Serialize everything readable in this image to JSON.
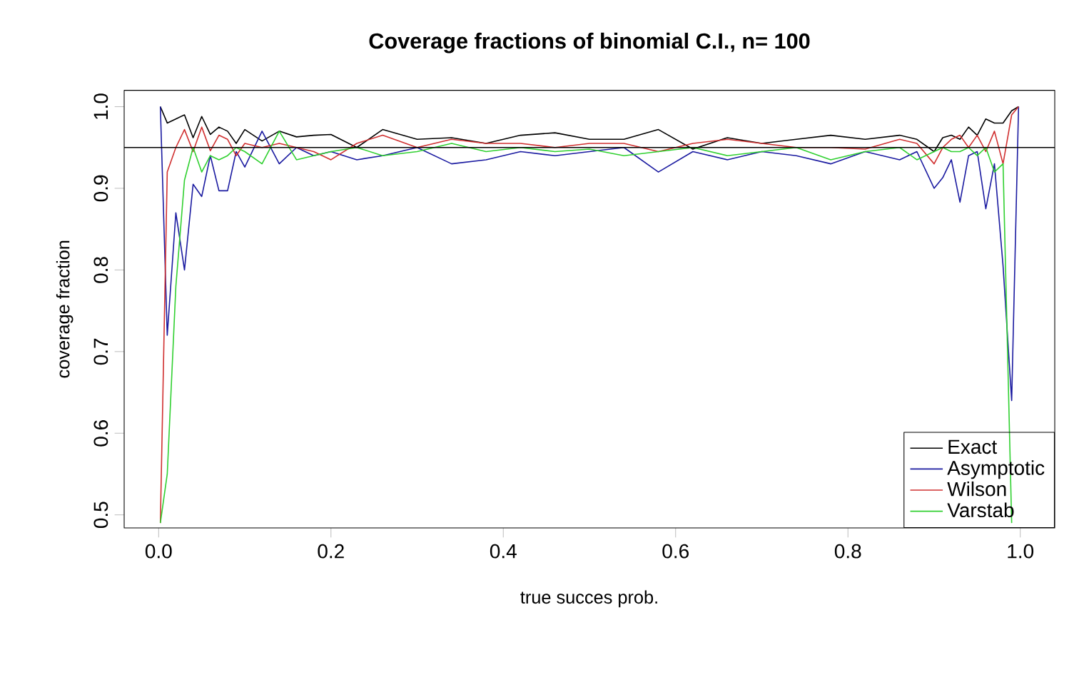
{
  "chart_data": {
    "type": "line",
    "title": "Coverage fractions of binomial C.I., n=  100",
    "xlabel": "true succes prob.",
    "ylabel": "coverage fraction",
    "x": [
      0.002,
      0.01,
      0.02,
      0.03,
      0.04,
      0.05,
      0.06,
      0.07,
      0.08,
      0.09,
      0.1,
      0.12,
      0.14,
      0.16,
      0.18,
      0.2,
      0.23,
      0.26,
      0.3,
      0.34,
      0.38,
      0.42,
      0.46,
      0.5,
      0.54,
      0.58,
      0.62,
      0.66,
      0.7,
      0.74,
      0.78,
      0.82,
      0.86,
      0.88,
      0.9,
      0.91,
      0.92,
      0.93,
      0.94,
      0.95,
      0.96,
      0.97,
      0.98,
      0.99,
      0.998
    ],
    "series": [
      {
        "name": "Exact",
        "color": "#000000",
        "values": [
          1.0,
          0.98,
          0.985,
          0.99,
          0.962,
          0.988,
          0.966,
          0.975,
          0.97,
          0.955,
          0.972,
          0.958,
          0.97,
          0.963,
          0.965,
          0.966,
          0.95,
          0.972,
          0.96,
          0.962,
          0.955,
          0.965,
          0.968,
          0.96,
          0.96,
          0.972,
          0.948,
          0.962,
          0.955,
          0.96,
          0.965,
          0.96,
          0.965,
          0.96,
          0.945,
          0.962,
          0.965,
          0.96,
          0.975,
          0.965,
          0.985,
          0.98,
          0.98,
          0.995,
          1.0
        ]
      },
      {
        "name": "Asymptotic",
        "color": "#1a1aa0",
        "values": [
          1.0,
          0.72,
          0.87,
          0.8,
          0.905,
          0.89,
          0.94,
          0.897,
          0.897,
          0.945,
          0.926,
          0.97,
          0.93,
          0.95,
          0.94,
          0.945,
          0.935,
          0.94,
          0.95,
          0.93,
          0.935,
          0.945,
          0.94,
          0.945,
          0.95,
          0.92,
          0.945,
          0.935,
          0.945,
          0.94,
          0.93,
          0.945,
          0.935,
          0.945,
          0.9,
          0.913,
          0.935,
          0.883,
          0.94,
          0.945,
          0.875,
          0.93,
          0.805,
          0.64,
          1.0
        ]
      },
      {
        "name": "Wilson",
        "color": "#d03030",
        "values": [
          0.49,
          0.92,
          0.95,
          0.972,
          0.945,
          0.975,
          0.946,
          0.965,
          0.96,
          0.94,
          0.955,
          0.95,
          0.955,
          0.95,
          0.945,
          0.935,
          0.955,
          0.965,
          0.95,
          0.96,
          0.955,
          0.955,
          0.95,
          0.955,
          0.955,
          0.945,
          0.955,
          0.96,
          0.955,
          0.95,
          0.95,
          0.948,
          0.96,
          0.955,
          0.93,
          0.95,
          0.96,
          0.965,
          0.95,
          0.965,
          0.945,
          0.97,
          0.93,
          0.99,
          1.0
        ]
      },
      {
        "name": "Varstab",
        "color": "#30d030",
        "values": [
          0.49,
          0.55,
          0.78,
          0.91,
          0.95,
          0.92,
          0.94,
          0.935,
          0.94,
          0.95,
          0.945,
          0.93,
          0.97,
          0.935,
          0.94,
          0.945,
          0.95,
          0.94,
          0.945,
          0.955,
          0.945,
          0.95,
          0.945,
          0.948,
          0.94,
          0.945,
          0.95,
          0.94,
          0.945,
          0.95,
          0.935,
          0.945,
          0.95,
          0.935,
          0.945,
          0.95,
          0.945,
          0.945,
          0.95,
          0.94,
          0.95,
          0.92,
          0.93,
          0.49,
          null
        ]
      }
    ],
    "xlim": [
      -0.04,
      1.04
    ],
    "ylim": [
      0.484,
      1.02
    ],
    "xticks": [
      {
        "value": 0.0,
        "label": "0.0"
      },
      {
        "value": 0.2,
        "label": "0.2"
      },
      {
        "value": 0.4,
        "label": "0.4"
      },
      {
        "value": 0.6,
        "label": "0.6"
      },
      {
        "value": 0.8,
        "label": "0.8"
      },
      {
        "value": 1.0,
        "label": "1.0"
      }
    ],
    "yticks": [
      {
        "value": 0.5,
        "label": "0.5"
      },
      {
        "value": 0.6,
        "label": "0.6"
      },
      {
        "value": 0.7,
        "label": "0.7"
      },
      {
        "value": 0.8,
        "label": "0.8"
      },
      {
        "value": 0.9,
        "label": "0.9"
      },
      {
        "value": 1.0,
        "label": "1.0"
      }
    ],
    "ref_lines": [
      {
        "axis": "y",
        "value": 0.95,
        "color": "#000000"
      }
    ],
    "legend": "bottom right",
    "grid": false,
    "marker": "none",
    "line_style": "solid"
  }
}
